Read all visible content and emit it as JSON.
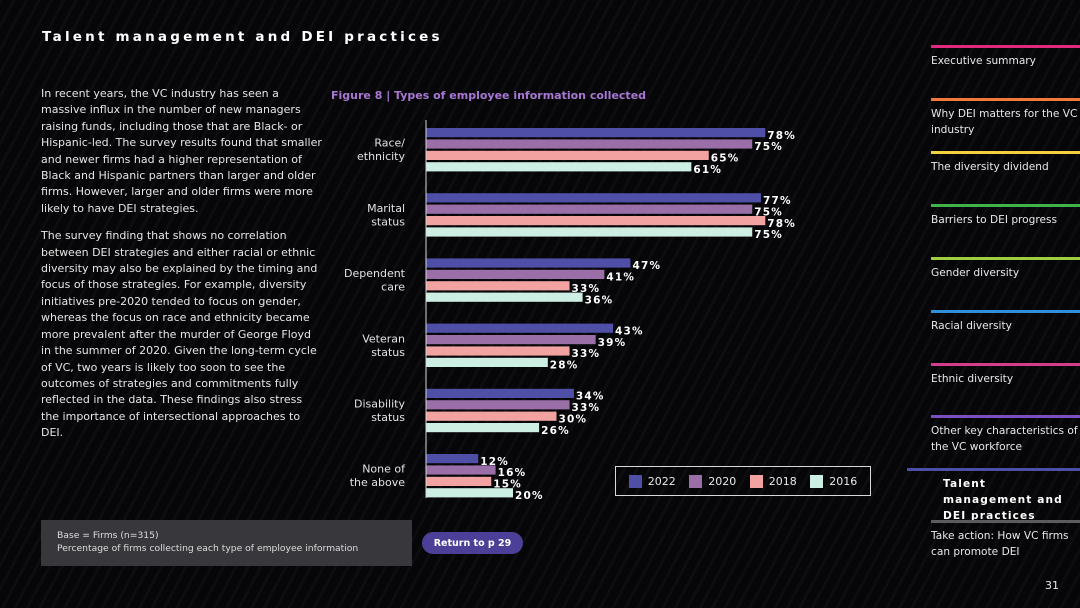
{
  "title": "Talent management and DEI practices",
  "body_paragraphs": [
    "In recent years, the VC industry has seen a massive influx in the number of new managers raising funds, including those that are Black- or Hispanic-led. The survey results found that smaller and newer firms had a higher representation of Black and Hispanic partners than larger and older firms. However, larger and older firms were more likely to have DEI strategies.",
    "The survey finding that shows no correlation between DEI strategies and either racial or ethnic diversity may also be explained by the timing and focus of those strategies. For example, diversity initiatives pre-2020 tended to focus on gender, whereas the focus on race and ethnicity became more prevalent after the murder of George Floyd in the summer of 2020. Given the long-term cycle of VC, two years is likely too soon to see the outcomes of strategies and commitments fully reflected in the data. These findings also stress the importance of intersectional approaches to DEI."
  ],
  "figure_title": "Figure 8  | Types of employee information collected",
  "base_note": {
    "line1": "Base = Firms (n=315)",
    "line2": "Percentage of firms collecting each type of employee information"
  },
  "return_button": "Return to p 29",
  "page_number": "31",
  "nav": [
    {
      "label": "Executive summary",
      "color": "#e0287e"
    },
    {
      "label": "Why DEI matters for the VC industry",
      "color": "#f07a3a"
    },
    {
      "label": "The diversity dividend",
      "color": "#f4d13c"
    },
    {
      "label": "Barriers to DEI progress",
      "color": "#3fb44b"
    },
    {
      "label": "Gender diversity",
      "color": "#9fcf3e"
    },
    {
      "label": "Racial diversity",
      "color": "#2f8fd8"
    },
    {
      "label": "Ethnic diversity",
      "color": "#d43d8c"
    },
    {
      "label": "Other key characteristics of the VC workforce",
      "color": "#7a4fc0"
    },
    {
      "label": "Talent management and DEI practices",
      "color": "#4d4fa6"
    },
    {
      "label": "Take action: How VC firms can promote DEI",
      "color": "#5c5c60"
    }
  ],
  "chart_data": {
    "type": "bar",
    "orientation": "horizontal",
    "title": "Figure 8  | Types of employee information collected",
    "categories": [
      [
        "Race/",
        "ethnicity"
      ],
      [
        "Marital",
        "status"
      ],
      [
        "Dependent",
        "care"
      ],
      [
        "Veteran",
        "status"
      ],
      [
        "Disability",
        "status"
      ],
      [
        "None of",
        "the above"
      ]
    ],
    "series": [
      {
        "name": "2022",
        "color": "#4f4fa8",
        "values": [
          78,
          77,
          47,
          43,
          34,
          12
        ]
      },
      {
        "name": "2020",
        "color": "#9a6fa8",
        "values": [
          75,
          75,
          41,
          39,
          33,
          16
        ]
      },
      {
        "name": "2018",
        "color": "#f2a3a1",
        "values": [
          65,
          78,
          33,
          33,
          30,
          15
        ]
      },
      {
        "name": "2016",
        "color": "#cdeee3",
        "values": [
          61,
          75,
          36,
          28,
          26,
          20
        ]
      }
    ],
    "value_suffix": "%",
    "xlim": [
      0,
      100
    ],
    "legend_position": "bottom-right",
    "grid": false
  }
}
